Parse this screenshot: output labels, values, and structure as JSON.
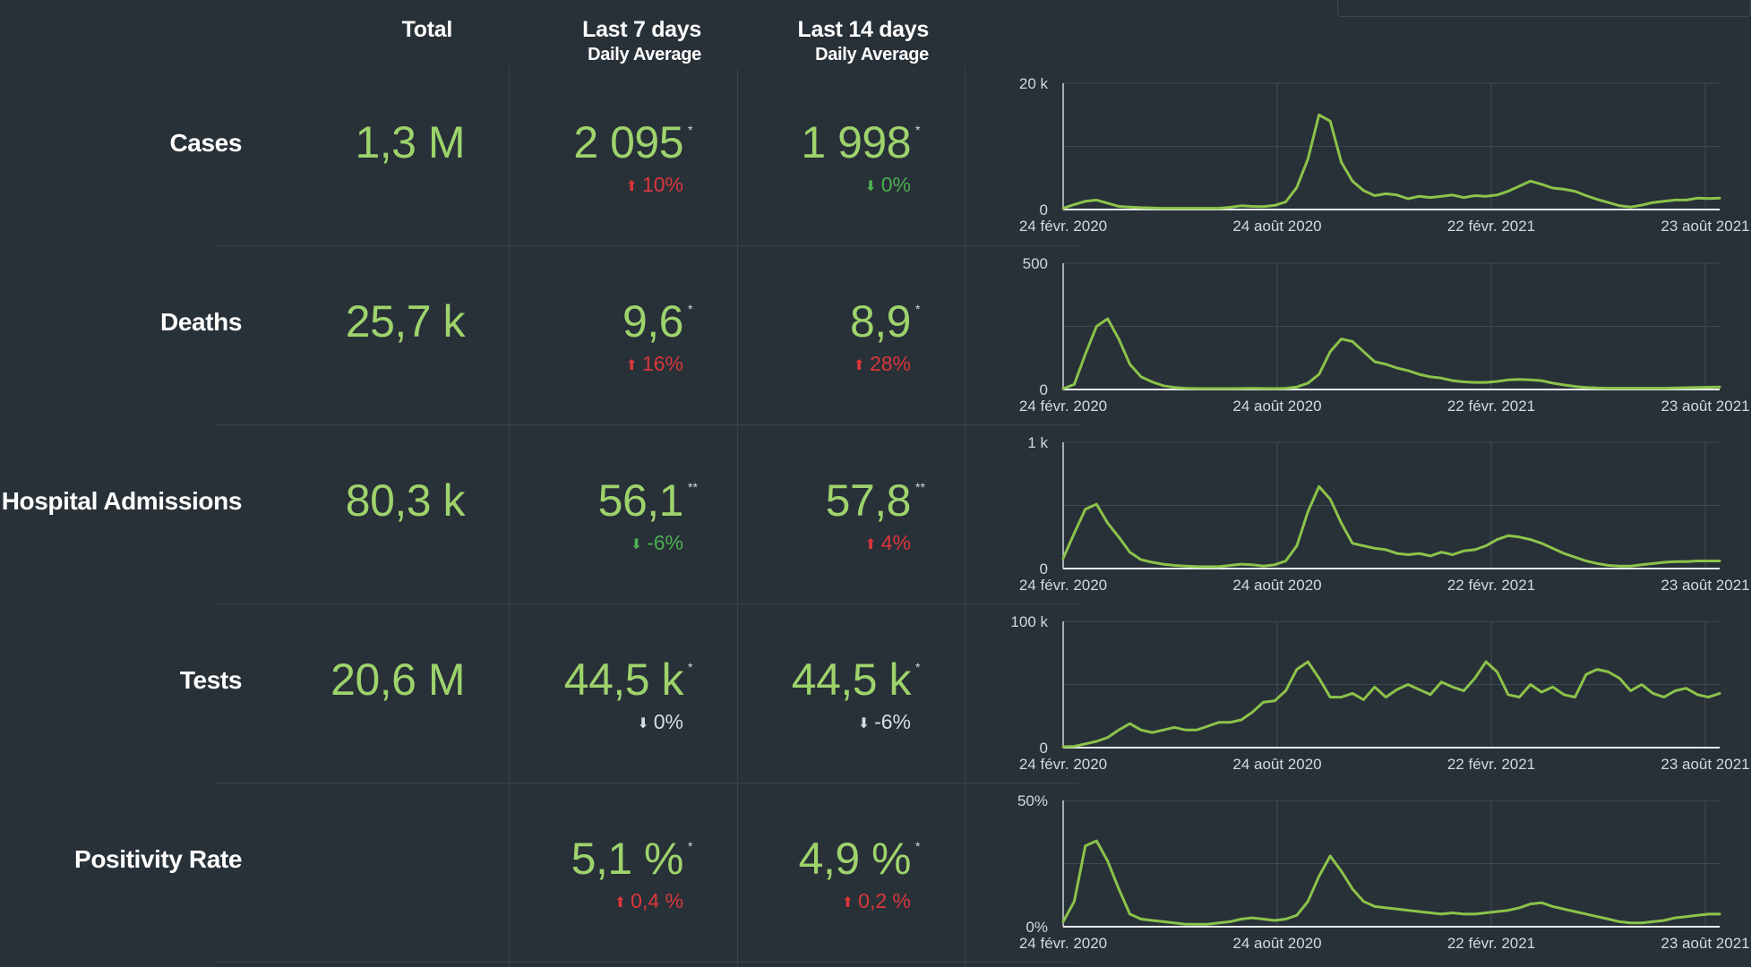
{
  "header": {
    "total": "Total",
    "last7": "Last 7 days",
    "last7_sub": "Daily Average",
    "last14": "Last 14 days",
    "last14_sub": "Daily Average"
  },
  "colors": {
    "value": "#9ed36c",
    "line": "#8cc34a",
    "up": "#d9373b",
    "down": "#4caf50",
    "neutral": "#d8dde2"
  },
  "rows": [
    {
      "label": "Cases",
      "total": "1,3 M",
      "avg7": "2 095",
      "avg7_mark": "*",
      "chg7": "10%",
      "chg7_dir": "up",
      "avg14": "1 998",
      "avg14_mark": "*",
      "chg14": "0%",
      "chg14_dir": "down-good"
    },
    {
      "label": "Deaths",
      "total": "25,7 k",
      "avg7": "9,6",
      "avg7_mark": "*",
      "chg7": "16%",
      "chg7_dir": "up",
      "avg14": "8,9",
      "avg14_mark": "*",
      "chg14": "28%",
      "chg14_dir": "up"
    },
    {
      "label": "Hospital Admissions",
      "total": "80,3 k",
      "avg7": "56,1",
      "avg7_mark": "**",
      "chg7": "-6%",
      "chg7_dir": "down-good",
      "avg14": "57,8",
      "avg14_mark": "**",
      "chg14": "4%",
      "chg14_dir": "up"
    },
    {
      "label": "Tests",
      "total": "20,6 M",
      "avg7": "44,5 k",
      "avg7_mark": "*",
      "chg7": "0%",
      "chg7_dir": "neutral",
      "avg14": "44,5 k",
      "avg14_mark": "*",
      "chg14": "-6%",
      "chg14_dir": "neutral"
    },
    {
      "label": "Positivity Rate",
      "total": "",
      "avg7": "5,1 %",
      "avg7_mark": "*",
      "chg7": "0,4 %",
      "chg7_dir": "up",
      "avg14": "4,9 %",
      "avg14_mark": "*",
      "chg14": "0,2 %",
      "chg14_dir": "up"
    }
  ],
  "chart_data": [
    {
      "type": "line",
      "series_of": "Cases",
      "x_ticks": [
        "24 févr. 2020",
        "24 août 2020",
        "22 févr. 2021",
        "23 août 2021"
      ],
      "y_ticks": [
        "0",
        "20 k"
      ],
      "ylim": [
        0,
        20000
      ],
      "grid": true,
      "values": [
        200,
        800,
        1300,
        1500,
        1000,
        500,
        400,
        300,
        250,
        200,
        200,
        200,
        200,
        200,
        200,
        350,
        600,
        500,
        450,
        650,
        1200,
        3500,
        8000,
        15000,
        14000,
        7500,
        4500,
        3000,
        2200,
        2500,
        2300,
        1700,
        2100,
        1900,
        2100,
        2300,
        1900,
        2200,
        2100,
        2300,
        2900,
        3700,
        4500,
        4000,
        3400,
        3200,
        2900,
        2200,
        1600,
        1100,
        600,
        400,
        700,
        1100,
        1300,
        1500,
        1500,
        1800,
        1750,
        1800
      ]
    },
    {
      "type": "line",
      "series_of": "Deaths",
      "x_ticks": [
        "24 févr. 2020",
        "24 août 2020",
        "22 févr. 2021",
        "23 août 2021"
      ],
      "y_ticks": [
        "0",
        "500"
      ],
      "ylim": [
        0,
        500
      ],
      "grid": true,
      "values": [
        0,
        20,
        140,
        250,
        280,
        200,
        100,
        50,
        30,
        15,
        8,
        5,
        4,
        3,
        3,
        3,
        4,
        5,
        4,
        3,
        5,
        10,
        25,
        60,
        150,
        200,
        190,
        150,
        110,
        100,
        85,
        75,
        60,
        50,
        45,
        35,
        30,
        28,
        28,
        32,
        38,
        40,
        38,
        35,
        25,
        18,
        12,
        8,
        6,
        5,
        5,
        5,
        5,
        5,
        5,
        6,
        7,
        8,
        9,
        10
      ]
    },
    {
      "type": "line",
      "series_of": "Hospital Admissions",
      "x_ticks": [
        "24 févr. 2020",
        "24 août 2020",
        "22 févr. 2021",
        "23 août 2021"
      ],
      "y_ticks": [
        "0",
        "1 k"
      ],
      "ylim": [
        0,
        1000
      ],
      "grid": true,
      "values": [
        80,
        280,
        470,
        510,
        360,
        250,
        130,
        70,
        50,
        35,
        25,
        20,
        15,
        15,
        15,
        25,
        35,
        30,
        20,
        30,
        60,
        180,
        450,
        650,
        550,
        360,
        200,
        180,
        160,
        150,
        120,
        110,
        120,
        100,
        130,
        110,
        140,
        150,
        180,
        230,
        260,
        250,
        230,
        200,
        160,
        120,
        90,
        60,
        40,
        25,
        20,
        20,
        30,
        40,
        50,
        55,
        55,
        60,
        60,
        60
      ]
    },
    {
      "type": "line",
      "series_of": "Tests",
      "x_ticks": [
        "24 févr. 2020",
        "24 août 2020",
        "22 févr. 2021",
        "23 août 2021"
      ],
      "y_ticks": [
        "0",
        "100 k"
      ],
      "ylim": [
        0,
        100000
      ],
      "grid": true,
      "values": [
        0,
        1000,
        3000,
        5000,
        8000,
        14000,
        19000,
        14000,
        12000,
        14000,
        16000,
        14000,
        14000,
        17000,
        20000,
        20000,
        22000,
        28000,
        36000,
        37000,
        45000,
        62000,
        68000,
        55000,
        40000,
        40000,
        43000,
        38000,
        48000,
        40000,
        46000,
        50000,
        46000,
        42000,
        52000,
        48000,
        45000,
        55000,
        68000,
        60000,
        42000,
        40000,
        50000,
        44000,
        48000,
        42000,
        40000,
        58000,
        62000,
        60000,
        55000,
        45000,
        50000,
        43000,
        40000,
        45000,
        47000,
        42000,
        40000,
        43000
      ]
    },
    {
      "type": "line",
      "series_of": "Positivity Rate",
      "x_ticks": [
        "24 févr. 2020",
        "24 août 2020",
        "22 févr. 2021",
        "23 août 2021"
      ],
      "y_ticks": [
        "0%",
        "50%"
      ],
      "ylim": [
        0,
        50
      ],
      "grid": true,
      "values": [
        2,
        10,
        32,
        34,
        26,
        15,
        5,
        3,
        2.5,
        2,
        1.5,
        1,
        1,
        1,
        1.5,
        2,
        3,
        3.5,
        3,
        2.5,
        3,
        4.5,
        10,
        20,
        28,
        22,
        15,
        10,
        8,
        7.5,
        7,
        6.5,
        6,
        5.5,
        5,
        5.5,
        5,
        5,
        5.5,
        6,
        6.5,
        7.5,
        9,
        9.5,
        8,
        7,
        6,
        5,
        4,
        3,
        2,
        1.5,
        1.5,
        2,
        2.5,
        3.5,
        4,
        4.5,
        5,
        5
      ]
    }
  ]
}
